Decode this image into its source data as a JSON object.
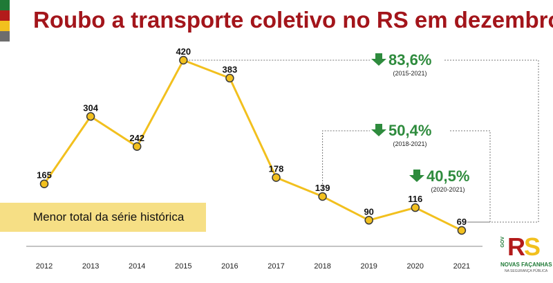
{
  "title": "Roubo a transporte coletivo no RS em dezembro",
  "note": "Menor total da série histórica",
  "chart_data": {
    "type": "line",
    "categories": [
      "2012",
      "2013",
      "2014",
      "2015",
      "2016",
      "2017",
      "2018",
      "2019",
      "2020",
      "2021"
    ],
    "values": [
      165,
      304,
      242,
      420,
      383,
      178,
      139,
      90,
      116,
      69
    ],
    "line_color": "#f2c01e",
    "ylim": [
      69,
      420
    ],
    "grid": false,
    "annotations": [
      {
        "pct": "83,6%",
        "period": "(2015-2021)",
        "from": "2015",
        "to": "2021"
      },
      {
        "pct": "50,4%",
        "period": "(2018-2021)",
        "from": "2018",
        "to": "2021"
      },
      {
        "pct": "40,5%",
        "period": "(2020-2021)",
        "from": "2020",
        "to": "2021"
      }
    ],
    "annotation_color": "#2e8b3d"
  },
  "logo": {
    "gov": "GOV",
    "rs_r": "R",
    "rs_s": "S",
    "tagline": "NOVAS FAÇANHAS",
    "subtag": "NA SEGURANÇA PÚBLICA"
  }
}
